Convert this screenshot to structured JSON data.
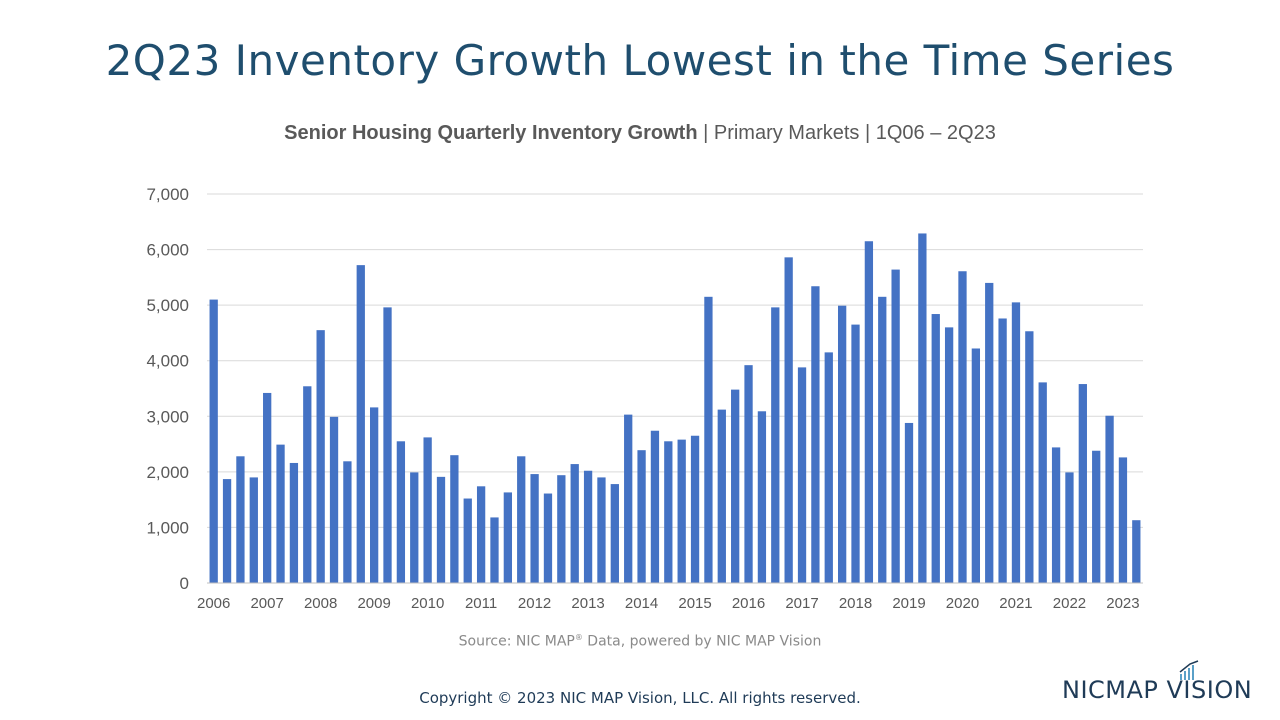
{
  "slide": {
    "title": "2Q23 Inventory Growth Lowest in the Time Series",
    "subtitle_bold": "Senior Housing Quarterly Inventory Growth",
    "subtitle_rest": " | Primary Markets | 1Q06 – 2Q23",
    "source_prefix": "Source: NIC MAP",
    "source_sup": "®",
    "source_suffix": " Data, powered by NIC MAP Vision",
    "copyright": "Copyright © 2023 NIC MAP Vision, LLC. All rights reserved.",
    "logo_text": "NICMAP VISION"
  },
  "colors": {
    "bar": "#4472c4",
    "title": "#1f4e6e",
    "grid": "#d9d9d9",
    "axis_text": "#595959"
  },
  "chart_data": {
    "type": "bar",
    "title": "Senior Housing Quarterly Inventory Growth | Primary Markets | 1Q06 – 2Q23",
    "xlabel": "",
    "ylabel": "",
    "ylim": [
      0,
      7000
    ],
    "yticks": [
      0,
      1000,
      2000,
      3000,
      4000,
      5000,
      6000,
      7000
    ],
    "ytick_labels": [
      "0",
      "1,000",
      "2,000",
      "3,000",
      "4,000",
      "5,000",
      "6,000",
      "7,000"
    ],
    "year_labels": [
      "2006",
      "2007",
      "2008",
      "2009",
      "2010",
      "2011",
      "2012",
      "2013",
      "2014",
      "2015",
      "2016",
      "2017",
      "2018",
      "2019",
      "2020",
      "2021",
      "2022",
      "2023"
    ],
    "values": [
      5100,
      1870,
      2280,
      1900,
      3420,
      2490,
      2160,
      3540,
      4550,
      2990,
      2190,
      5720,
      3160,
      4960,
      2550,
      1990,
      2620,
      1910,
      2300,
      1520,
      1740,
      1180,
      1630,
      2280,
      1960,
      1610,
      1940,
      2140,
      2020,
      1900,
      1780,
      3030,
      2390,
      2740,
      2550,
      2580,
      2650,
      5150,
      3120,
      3480,
      3920,
      3090,
      4960,
      5860,
      3880,
      5340,
      4150,
      4990,
      4650,
      6150,
      5150,
      5640,
      2880,
      6290,
      4840,
      4600,
      5610,
      4220,
      5400,
      4760,
      5050,
      4530,
      3610,
      2440,
      1990,
      3580,
      2380,
      3010,
      2260,
      1130
    ]
  }
}
